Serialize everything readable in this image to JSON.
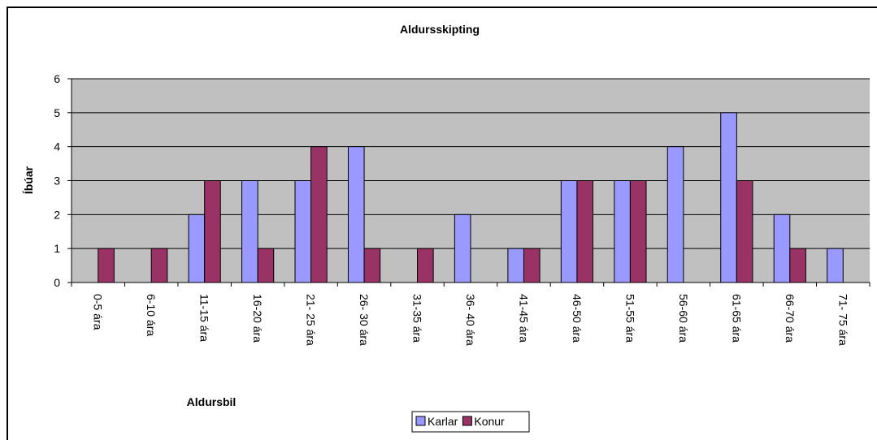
{
  "chart_data": {
    "type": "bar",
    "title": "Aldursskipting",
    "xlabel": "Aldursbil",
    "ylabel": "Íbúar",
    "categories": [
      "0-5 ára",
      "6-10 ára",
      "11-15 ára",
      "16-20 ára",
      "21- 25 ára",
      "26- 30 ára",
      "31-35 ára",
      "36- 40 ára",
      "41-45 ára",
      "46-50 ára",
      "51-55 ára",
      "56-60 ára",
      "61-65 ára",
      "66-70 ára",
      "71- 75 ára"
    ],
    "series": [
      {
        "name": "Karlar",
        "color": "#9999ff",
        "values": [
          0,
          0,
          2,
          3,
          3,
          4,
          0,
          2,
          1,
          3,
          3,
          4,
          5,
          2,
          1
        ]
      },
      {
        "name": "Konur",
        "color": "#993366",
        "values": [
          1,
          1,
          3,
          1,
          4,
          1,
          1,
          0,
          1,
          3,
          3,
          0,
          3,
          1,
          0
        ]
      }
    ],
    "ylim": [
      0,
      6
    ],
    "yticks": [
      0,
      1,
      2,
      3,
      4,
      5,
      6
    ],
    "grid": true,
    "legend": "bottom"
  }
}
